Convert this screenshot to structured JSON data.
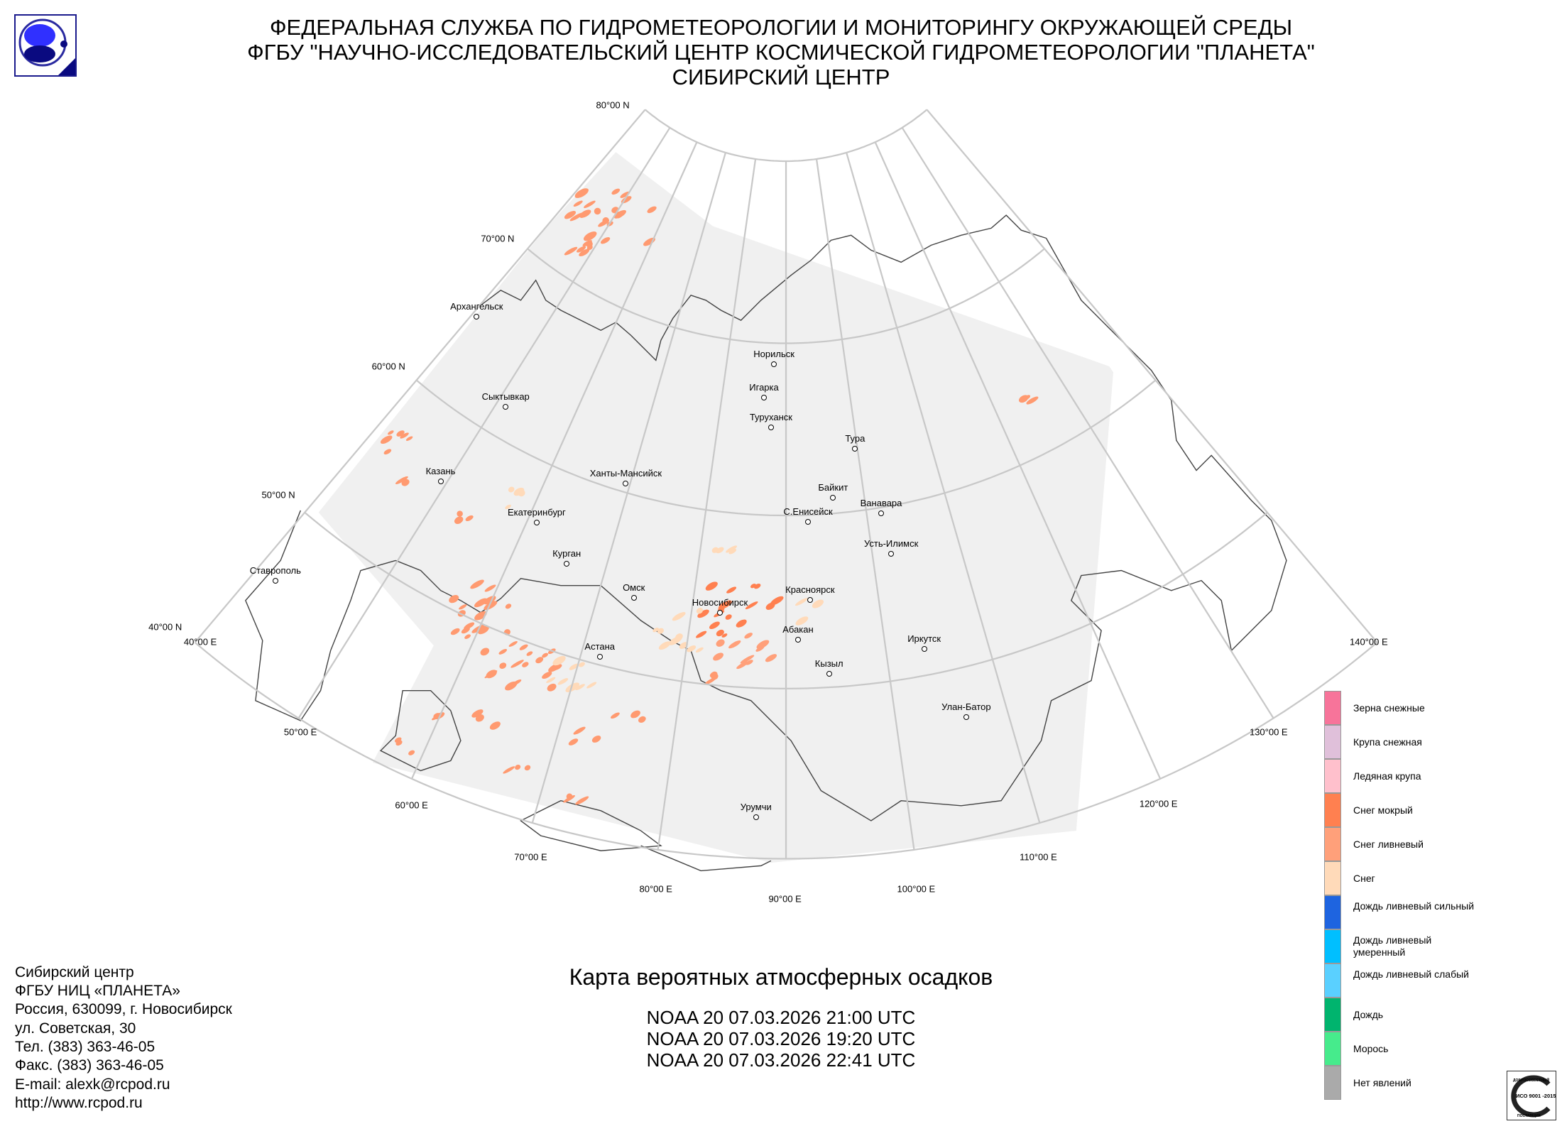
{
  "header": {
    "line1": "ФЕДЕРАЛЬНАЯ СЛУЖБА ПО ГИДРОМЕТЕОРОЛОГИИ И МОНИТОРИНГУ ОКРУЖАЮЩЕЙ СРЕДЫ",
    "line2": "ФГБУ \"НАУЧНО-ИССЛЕДОВАТЕЛЬСКИЙ ЦЕНТР КОСМИЧЕСКОЙ ГИДРОМЕТЕОРОЛОГИИ \"ПЛАНЕТА\"",
    "line3": "СИБИРСКИЙ ЦЕНТР"
  },
  "map": {
    "lat_labels": [
      "80°00 N",
      "70°00 N",
      "60°00 N",
      "50°00 N",
      "40°00 N"
    ],
    "lon_labels": [
      "40°00 E",
      "50°00 E",
      "60°00 E",
      "70°00 E",
      "80°00 E",
      "90°00 E",
      "100°00 E",
      "110°00 E",
      "120°00 E",
      "130°00 E",
      "140°00 E"
    ],
    "cities": [
      "Архангельск",
      "Сыктывкар",
      "Казань",
      "Екатеринбург",
      "Ханты-Мансийск",
      "Курган",
      "Омск",
      "Новосибирск",
      "Астана",
      "Норильск",
      "Игарка",
      "Туруханск",
      "Тура",
      "Байкит",
      "С.Енисейск",
      "Ванавара",
      "Усть-Илимск",
      "Красноярск",
      "Абакан",
      "Кызыл",
      "Иркутск",
      "Улан-Батор",
      "Урумчи",
      "Ставрополь"
    ]
  },
  "title": "Карта вероятных атмосферных осадков",
  "passes": [
    "NOAA 20 07.03.2026  21:00 UTC",
    "NOAA 20 07.03.2026  19:20 UTC",
    "NOAA 20 07.03.2026  22:41 UTC"
  ],
  "footer": [
    "Сибирский центр",
    "ФГБУ НИЦ «ПЛАНЕТА»",
    "Россия, 630099, г. Новосибирск",
    "ул. Советская, 30",
    "Тел. (383) 363-46-05",
    "Факс. (383) 363-46-05",
    "E-mail: alexk@rcpod.ru",
    "http://www.rcpod.ru"
  ],
  "legend": [
    {
      "label": "Зерна снежные",
      "color": "#F7749A"
    },
    {
      "label": "Крупа снежная",
      "color": "#E0C0DA"
    },
    {
      "label": "Ледяная крупа",
      "color": "#FFC0CC"
    },
    {
      "label": "Снег мокрый",
      "color": "#FF8050"
    },
    {
      "label": "Снег ливневый",
      "color": "#FFA07A"
    },
    {
      "label": "Снег",
      "color": "#FFDAB9"
    },
    {
      "label": "Дождь ливневый сильный",
      "color": "#1E64E0"
    },
    {
      "label": "Дождь ливневый умеренный",
      "color": "#00BFFF"
    },
    {
      "label": "Дождь ливневый слабый",
      "color": "#5AD0FF"
    },
    {
      "label": "Дождь",
      "color": "#00B46E"
    },
    {
      "label": "Морось",
      "color": "#46EB8C"
    },
    {
      "label": "Нет явлений",
      "color": "#AAAAAA"
    }
  ],
  "badge": {
    "text": "ИСО 9001 -2015",
    "top": "ДОБРОСОВЕСТНЫЙ",
    "bottom": "ПОСТАВЩИК"
  }
}
